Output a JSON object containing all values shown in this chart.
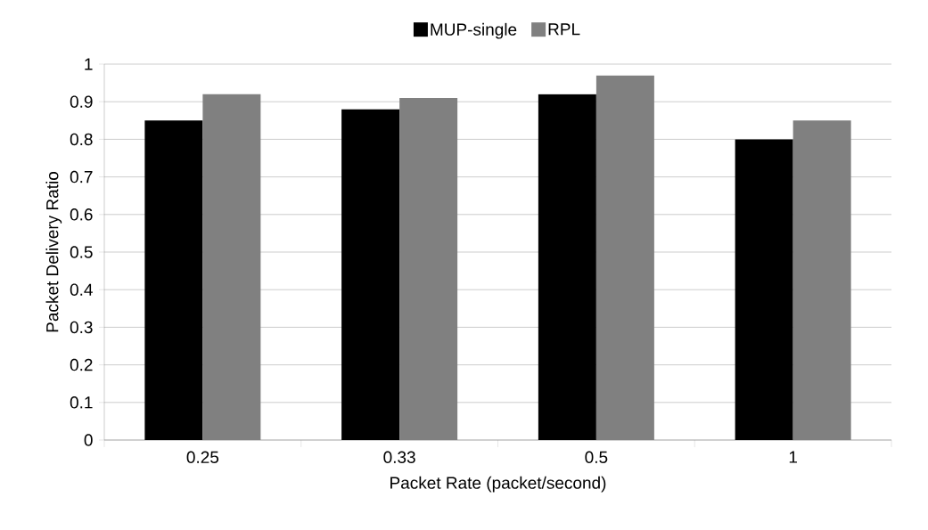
{
  "chart_data": {
    "type": "bar",
    "xlabel": "Packet Rate (packet/second)",
    "ylabel": "Packet Delivery Ratio",
    "categories": [
      "0.25",
      "0.33",
      "0.5",
      "1"
    ],
    "series": [
      {
        "name": "MUP-single",
        "color": "#000000",
        "values": [
          0.85,
          0.88,
          0.92,
          0.8
        ]
      },
      {
        "name": "RPL",
        "color": "#808080",
        "values": [
          0.92,
          0.91,
          0.97,
          0.85
        ]
      }
    ],
    "ylim": [
      0,
      1
    ],
    "yticks": [
      0,
      0.1,
      0.2,
      0.3,
      0.4,
      0.5,
      0.6,
      0.7,
      0.8,
      0.9,
      1
    ],
    "grid": "y",
    "legend": "top"
  }
}
